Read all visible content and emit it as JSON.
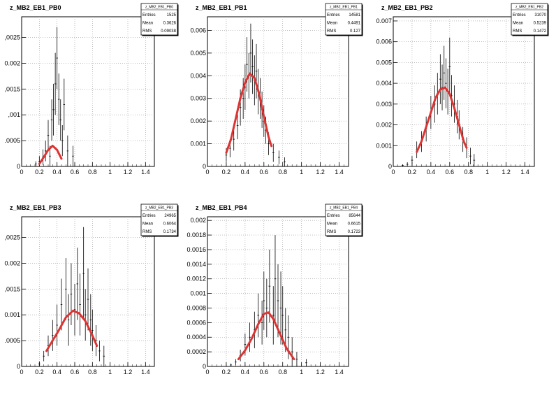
{
  "chart_data": [
    {
      "type": "scatter",
      "title": "z_MB2_EB1_PB0",
      "stats": {
        "name": "z_MB2_EB1_PB0",
        "entries": "1525",
        "mean": "0.3626",
        "rms": "0.09038"
      },
      "xlim": [
        0,
        1.5
      ],
      "ylim": [
        0,
        0.0029
      ],
      "xticks": [
        "0",
        "0.2",
        "0.4",
        "0.6",
        "0.8",
        "1",
        "1.2",
        "1.4"
      ],
      "yticks": [
        {
          "v": 0,
          "t": "0"
        },
        {
          "v": 0.0005,
          "t": ".0005"
        },
        {
          "v": 0.001,
          "t": ",001"
        },
        {
          "v": 0.0015,
          "t": ",0015"
        },
        {
          "v": 0.002,
          "t": "0.002"
        },
        {
          "v": 0.0025,
          "t": ",0025"
        }
      ],
      "grid": true,
      "series": [
        {
          "values": [
            [
              0.16,
              5e-05
            ],
            [
              0.2,
              0.0001
            ],
            [
              0.24,
              0.00018
            ],
            [
              0.27,
              0.0003
            ],
            [
              0.3,
              0.0006
            ],
            [
              0.32,
              0.0002
            ],
            [
              0.34,
              0.0009
            ],
            [
              0.36,
              0.0011
            ],
            [
              0.38,
              0.0016
            ],
            [
              0.4,
              0.0021
            ],
            [
              0.42,
              0.0013
            ],
            [
              0.44,
              0.0009
            ],
            [
              0.46,
              0.0005
            ],
            [
              0.48,
              0.0012
            ],
            [
              0.52,
              0.0003
            ],
            [
              0.58,
              0.0002
            ]
          ],
          "errors": [
            5e-05,
            0.0001,
            0.00015,
            0.0002,
            0.0003,
            0.0002,
            0.0004,
            0.0005,
            0.0006,
            0.0006,
            0.0005,
            0.0004,
            0.0003,
            0.0005,
            0.0003,
            0.0002
          ]
        },
        {
          "name": "",
          "color": "#dd3333",
          "values": [
            [
              0.2,
              5e-05
            ],
            [
              0.25,
              0.00018
            ],
            [
              0.3,
              0.00032
            ],
            [
              0.35,
              0.0004
            ],
            [
              0.4,
              0.00032
            ],
            [
              0.45,
              0.00015
            ]
          ]
        }
      ]
    },
    {
      "type": "scatter",
      "title": "z_MB2_EB1_PB1",
      "stats": {
        "name": "z_MB2_EB1_PB1",
        "entries": "14581",
        "mean": "0.4491",
        "rms": "0.127"
      },
      "xlim": [
        0,
        1.5
      ],
      "ylim": [
        0,
        0.0066
      ],
      "xticks": [
        "0",
        "0.2",
        "0.4",
        "0.6",
        "0.8",
        "1",
        "1.2",
        "1.4"
      ],
      "yticks": [
        {
          "v": 0,
          "t": "0"
        },
        {
          "v": 0.001,
          "t": "0.001"
        },
        {
          "v": 0.002,
          "t": "0.002"
        },
        {
          "v": 0.003,
          "t": "0.003"
        },
        {
          "v": 0.004,
          "t": "0.004"
        },
        {
          "v": 0.005,
          "t": "0.005"
        },
        {
          "v": 0.006,
          "t": "0.006"
        }
      ],
      "grid": true,
      "series": [
        {
          "values": [
            [
              0.2,
              0.0005
            ],
            [
              0.24,
              0.0008
            ],
            [
              0.28,
              0.0012
            ],
            [
              0.32,
              0.0018
            ],
            [
              0.35,
              0.0026
            ],
            [
              0.38,
              0.003
            ],
            [
              0.4,
              0.0035
            ],
            [
              0.42,
              0.0045
            ],
            [
              0.44,
              0.004
            ],
            [
              0.46,
              0.005
            ],
            [
              0.48,
              0.0044
            ],
            [
              0.5,
              0.0038
            ],
            [
              0.52,
              0.0042
            ],
            [
              0.54,
              0.0033
            ],
            [
              0.56,
              0.003
            ],
            [
              0.58,
              0.0025
            ],
            [
              0.6,
              0.002
            ],
            [
              0.62,
              0.0016
            ],
            [
              0.65,
              0.001
            ],
            [
              0.7,
              0.0006
            ],
            [
              0.76,
              0.0004
            ],
            [
              0.82,
              0.0002
            ]
          ],
          "errors": [
            0.0003,
            0.0004,
            0.0005,
            0.0006,
            0.0008,
            0.0009,
            0.001,
            0.0012,
            0.001,
            0.0013,
            0.0012,
            0.0011,
            0.0012,
            0.001,
            0.0009,
            0.0008,
            0.0007,
            0.0006,
            0.0005,
            0.0004,
            0.0003,
            0.0002
          ]
        },
        {
          "name": "",
          "color": "#dd3333",
          "values": [
            [
              0.2,
              0.0006
            ],
            [
              0.25,
              0.0012
            ],
            [
              0.3,
              0.0021
            ],
            [
              0.35,
              0.003
            ],
            [
              0.4,
              0.0037
            ],
            [
              0.45,
              0.0041
            ],
            [
              0.5,
              0.0039
            ],
            [
              0.55,
              0.0032
            ],
            [
              0.6,
              0.0022
            ],
            [
              0.65,
              0.0013
            ],
            [
              0.68,
              0.0009
            ]
          ]
        }
      ]
    },
    {
      "type": "scatter",
      "title": "z_MB2_EB1_PB2",
      "stats": {
        "name": "z_MB2_EB1_PB2",
        "entries": "31070",
        "mean": "0.5239",
        "rms": "0.1472"
      },
      "xlim": [
        0,
        1.5
      ],
      "ylim": [
        0,
        0.0072
      ],
      "xticks": [
        "0",
        "0.2",
        "0.4",
        "0.6",
        "0.8",
        "1",
        "1.2",
        "1.4"
      ],
      "yticks": [
        {
          "v": 0,
          "t": "0"
        },
        {
          "v": 0.001,
          "t": "0.001"
        },
        {
          "v": 0.002,
          "t": "0.002"
        },
        {
          "v": 0.003,
          "t": "0.003"
        },
        {
          "v": 0.004,
          "t": "0.004"
        },
        {
          "v": 0.005,
          "t": "0.005"
        },
        {
          "v": 0.006,
          "t": "0.006"
        },
        {
          "v": 0.007,
          "t": "0.007"
        }
      ],
      "grid": true,
      "series": [
        {
          "values": [
            [
              0.1,
              5e-05
            ],
            [
              0.15,
              0.0001
            ],
            [
              0.2,
              0.0003
            ],
            [
              0.25,
              0.0008
            ],
            [
              0.3,
              0.0012
            ],
            [
              0.35,
              0.0018
            ],
            [
              0.4,
              0.0026
            ],
            [
              0.44,
              0.003
            ],
            [
              0.47,
              0.0035
            ],
            [
              0.5,
              0.0042
            ],
            [
              0.52,
              0.0038
            ],
            [
              0.54,
              0.0045
            ],
            [
              0.56,
              0.004
            ],
            [
              0.58,
              0.0036
            ],
            [
              0.6,
              0.0048
            ],
            [
              0.62,
              0.0034
            ],
            [
              0.65,
              0.003
            ],
            [
              0.68,
              0.0024
            ],
            [
              0.7,
              0.002
            ],
            [
              0.74,
              0.0013
            ],
            [
              0.78,
              0.0009
            ],
            [
              0.82,
              0.0005
            ],
            [
              0.86,
              0.0003
            ]
          ],
          "errors": [
            5e-05,
            0.0001,
            0.0002,
            0.0004,
            0.0005,
            0.0006,
            0.0008,
            0.0009,
            0.001,
            0.0012,
            0.0011,
            0.0013,
            0.0012,
            0.0011,
            0.0014,
            0.001,
            0.0009,
            0.0008,
            0.0007,
            0.0006,
            0.0005,
            0.0004,
            0.0003
          ]
        },
        {
          "name": "",
          "color": "#dd3333",
          "values": [
            [
              0.25,
              0.0007
            ],
            [
              0.3,
              0.0012
            ],
            [
              0.35,
              0.0019
            ],
            [
              0.4,
              0.0026
            ],
            [
              0.45,
              0.0033
            ],
            [
              0.5,
              0.0037
            ],
            [
              0.55,
              0.0038
            ],
            [
              0.6,
              0.0035
            ],
            [
              0.65,
              0.0028
            ],
            [
              0.7,
              0.002
            ],
            [
              0.75,
              0.0012
            ],
            [
              0.78,
              0.0009
            ]
          ]
        }
      ]
    },
    {
      "type": "scatter",
      "title": "z_MB2_EB1_PB3",
      "stats": {
        "name": "z_MB2_EB1_PB3",
        "entries": "24965",
        "mean": "0.6064",
        "rms": "0.1734"
      },
      "xlim": [
        0,
        1.5
      ],
      "ylim": [
        0,
        0.0029
      ],
      "xticks": [
        "0",
        "0.2",
        "0.4",
        "0.6",
        "0.8",
        "1",
        "1.2",
        "1.4"
      ],
      "yticks": [
        {
          "v": 0,
          "t": "0"
        },
        {
          "v": 0.0005,
          "t": ".0005"
        },
        {
          "v": 0.001,
          "t": "0.001"
        },
        {
          "v": 0.0015,
          "t": ",0015"
        },
        {
          "v": 0.002,
          "t": "0.002"
        },
        {
          "v": 0.0025,
          "t": ",0025"
        }
      ],
      "grid": true,
      "series": [
        {
          "values": [
            [
              0.2,
              5e-05
            ],
            [
              0.25,
              0.0002
            ],
            [
              0.3,
              0.0004
            ],
            [
              0.35,
              0.0006
            ],
            [
              0.4,
              0.0008
            ],
            [
              0.45,
              0.0012
            ],
            [
              0.5,
              0.0015
            ],
            [
              0.53,
              0.0009
            ],
            [
              0.56,
              0.0014
            ],
            [
              0.6,
              0.0011
            ],
            [
              0.63,
              0.0016
            ],
            [
              0.66,
              0.0012
            ],
            [
              0.7,
              0.0018
            ],
            [
              0.72,
              0.001
            ],
            [
              0.75,
              0.0013
            ],
            [
              0.78,
              0.0009
            ],
            [
              0.8,
              0.0007
            ],
            [
              0.84,
              0.0005
            ],
            [
              0.88,
              0.0003
            ],
            [
              0.93,
              0.0002
            ]
          ],
          "errors": [
            5e-05,
            0.0001,
            0.0002,
            0.0003,
            0.0004,
            0.0005,
            0.0006,
            0.0005,
            0.0006,
            0.0005,
            0.0007,
            0.0006,
            0.0009,
            0.0005,
            0.0006,
            0.0005,
            0.0004,
            0.0003,
            0.0002,
            0.0002
          ]
        },
        {
          "name": "",
          "color": "#dd3333",
          "values": [
            [
              0.28,
              0.0003
            ],
            [
              0.35,
              0.0005
            ],
            [
              0.42,
              0.0007
            ],
            [
              0.5,
              0.00095
            ],
            [
              0.58,
              0.00108
            ],
            [
              0.65,
              0.00103
            ],
            [
              0.72,
              0.00088
            ],
            [
              0.8,
              0.0006
            ],
            [
              0.85,
              0.0004
            ]
          ]
        }
      ]
    },
    {
      "type": "scatter",
      "title": "z_MB2_EB1_PB4",
      "stats": {
        "name": "z_MB2_EB1_PB4",
        "entries": "85644",
        "mean": "0.6615",
        "rms": "0.1723"
      },
      "xlim": [
        0,
        1.5
      ],
      "ylim": [
        0,
        0.00205
      ],
      "xticks": [
        "0",
        "0.2",
        "0.4",
        "0.6",
        "0.8",
        "1",
        "1.2",
        "1.4"
      ],
      "yticks": [
        {
          "v": 0,
          "t": "0"
        },
        {
          "v": 0.0002,
          "t": "0.0002"
        },
        {
          "v": 0.0004,
          "t": "0.0004"
        },
        {
          "v": 0.0006,
          "t": "0.0006"
        },
        {
          "v": 0.0008,
          "t": "0.0008"
        },
        {
          "v": 0.001,
          "t": "0.001"
        },
        {
          "v": 0.0012,
          "t": "0.0012"
        },
        {
          "v": 0.0014,
          "t": "0.0014"
        },
        {
          "v": 0.0016,
          "t": "0.0016"
        },
        {
          "v": 0.0018,
          "t": "0.0018"
        },
        {
          "v": 0.002,
          "t": "0.002"
        }
      ],
      "grid": true,
      "series": [
        {
          "values": [
            [
              0.25,
              2e-05
            ],
            [
              0.3,
              6e-05
            ],
            [
              0.35,
              0.00015
            ],
            [
              0.4,
              0.0003
            ],
            [
              0.45,
              0.0004
            ],
            [
              0.5,
              0.0005
            ],
            [
              0.54,
              0.0007
            ],
            [
              0.58,
              0.0006
            ],
            [
              0.6,
              0.0009
            ],
            [
              0.63,
              0.0008
            ],
            [
              0.66,
              0.0011
            ],
            [
              0.7,
              0.0007
            ],
            [
              0.72,
              0.0012
            ],
            [
              0.75,
              0.0009
            ],
            [
              0.78,
              0.0008
            ],
            [
              0.8,
              0.0007
            ],
            [
              0.83,
              0.0005
            ],
            [
              0.86,
              0.0004
            ],
            [
              0.9,
              0.0002
            ],
            [
              0.95,
              0.0001
            ],
            [
              1.05,
              5e-05
            ]
          ],
          "errors": [
            2e-05,
            4e-05,
            8e-05,
            0.00015,
            0.0002,
            0.00025,
            0.0003,
            0.0003,
            0.0004,
            0.0004,
            0.0005,
            0.0004,
            0.0006,
            0.0005,
            0.0005,
            0.0004,
            0.0003,
            0.0003,
            0.0002,
            0.0001,
            5e-05
          ]
        },
        {
          "name": "",
          "color": "#dd3333",
          "values": [
            [
              0.33,
              0.0001
            ],
            [
              0.4,
              0.00022
            ],
            [
              0.47,
              0.00038
            ],
            [
              0.54,
              0.00058
            ],
            [
              0.6,
              0.00072
            ],
            [
              0.65,
              0.00074
            ],
            [
              0.7,
              0.00065
            ],
            [
              0.77,
              0.00045
            ],
            [
              0.84,
              0.00025
            ],
            [
              0.92,
              0.0001
            ]
          ]
        }
      ]
    }
  ]
}
